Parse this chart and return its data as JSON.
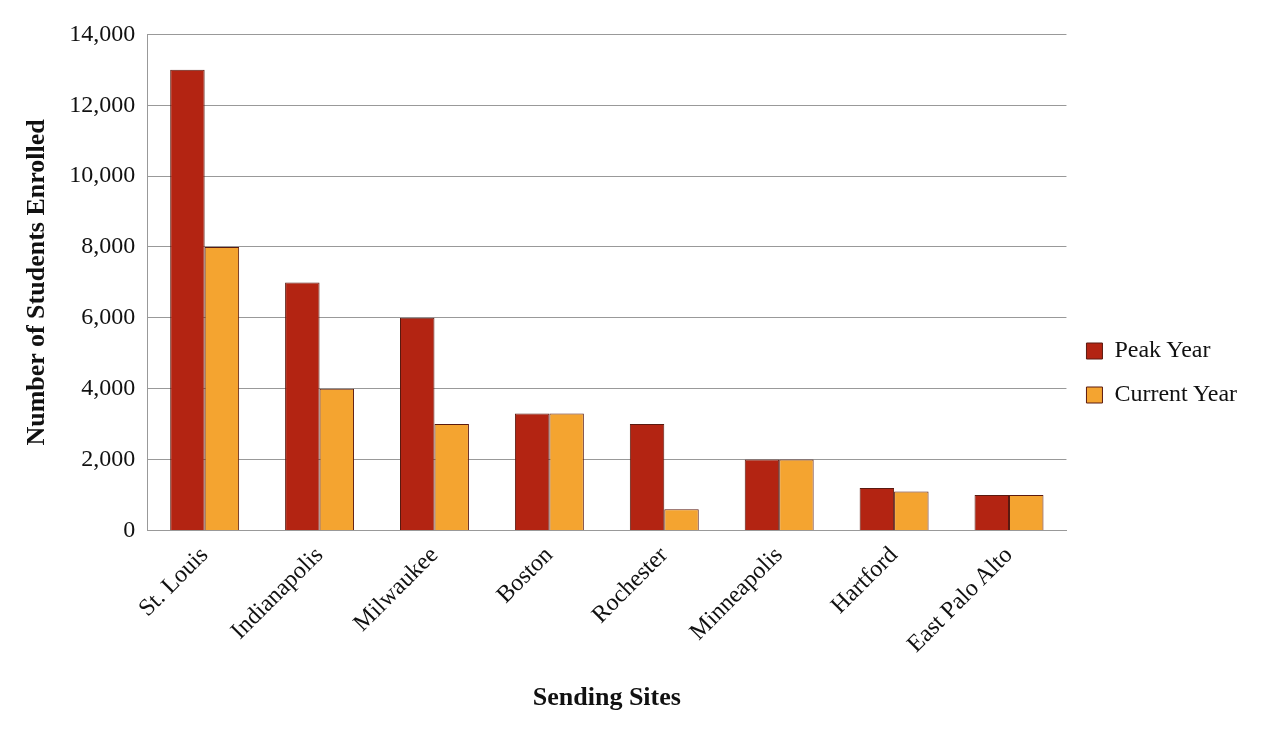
{
  "chart_data": {
    "type": "bar",
    "xlabel": "Sending Sites",
    "ylabel": "Number of Students Enrolled",
    "categories": [
      "St. Louis",
      "Indianapolis",
      "Milwaukee",
      "Boston",
      "Rochester",
      "Minneapolis",
      "Hartford",
      "East Palo Alto"
    ],
    "series": [
      {
        "name": "Peak Year",
        "color": "#b32412",
        "values": [
          13000,
          7000,
          6000,
          3300,
          3000,
          2000,
          1200,
          1000
        ]
      },
      {
        "name": "Current Year",
        "color": "#f4a430",
        "values": [
          8000,
          4000,
          3000,
          3300,
          600,
          2000,
          1100,
          1000
        ]
      }
    ],
    "ylim": [
      0,
      14000
    ],
    "yticks": [
      {
        "value": 0,
        "label": "0"
      },
      {
        "value": 2000,
        "label": "2,000"
      },
      {
        "value": 4000,
        "label": "4,000"
      },
      {
        "value": 6000,
        "label": "6,000"
      },
      {
        "value": 8000,
        "label": "8,000"
      },
      {
        "value": 10000,
        "label": "10,000"
      },
      {
        "value": 12000,
        "label": "12,000"
      },
      {
        "value": 14000,
        "label": "14,000"
      }
    ],
    "grid": "y",
    "legend": "right"
  }
}
